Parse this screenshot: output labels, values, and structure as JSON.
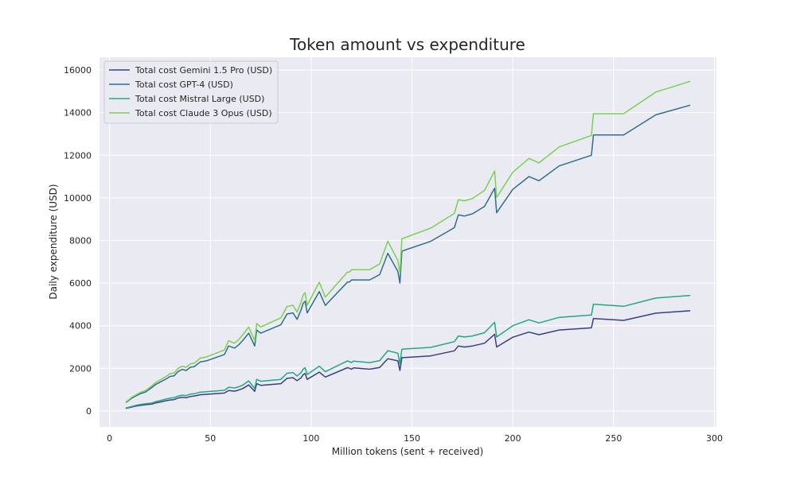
{
  "chart_data": {
    "type": "line",
    "title": "Token amount vs expenditure",
    "xlabel": "Million tokens (sent + received)",
    "ylabel": "Daily expenditure (USD)",
    "xlim": [
      -5,
      301
    ],
    "ylim": [
      -750,
      16600
    ],
    "xticks": [
      0,
      50,
      100,
      150,
      200,
      250,
      300
    ],
    "yticks": [
      0,
      2000,
      4000,
      6000,
      8000,
      10000,
      12000,
      14000,
      16000
    ],
    "grid": true,
    "legend_position": "top-left",
    "x": [
      8,
      9,
      11,
      13,
      15,
      18,
      21,
      23,
      25,
      28,
      30,
      32,
      34,
      36,
      38,
      40,
      42,
      45,
      48,
      57,
      59,
      62,
      64,
      66,
      69,
      72,
      73,
      75,
      85,
      88,
      91,
      93,
      95,
      96,
      97,
      98,
      104,
      107,
      118,
      119,
      120,
      121,
      129,
      134,
      138,
      143,
      144,
      145,
      159,
      160,
      171,
      173,
      176,
      180,
      186,
      191,
      192,
      200,
      208,
      213,
      223,
      239,
      240,
      255,
      271,
      288
    ],
    "series": [
      {
        "name": "Total cost Gemini 1.5 Pro (USD)",
        "color": "#3b3f84",
        "values": [
          124,
          140,
          182,
          226,
          258,
          295,
          320,
          380,
          413,
          480,
          515,
          530,
          610,
          640,
          620,
          680,
          700,
          760,
          780,
          840,
          960,
          930,
          980,
          1050,
          1220,
          920,
          1280,
          1200,
          1280,
          1530,
          1560,
          1420,
          1560,
          1700,
          1760,
          1480,
          1820,
          1590,
          2030,
          2000,
          1960,
          2020,
          1960,
          2040,
          2450,
          2350,
          1900,
          2500,
          2580,
          2600,
          2820,
          3050,
          3000,
          3050,
          3180,
          3600,
          3000,
          3460,
          3700,
          3580,
          3800,
          3900,
          4340,
          4250,
          4590,
          4700
        ]
      },
      {
        "name": "Total cost GPT-4 (USD)",
        "color": "#2e6f8e",
        "values": [
          400,
          450,
          600,
          700,
          800,
          900,
          1100,
          1250,
          1350,
          1500,
          1620,
          1650,
          1850,
          1950,
          1900,
          2050,
          2080,
          2300,
          2350,
          2650,
          3050,
          2950,
          3100,
          3300,
          3650,
          3050,
          3800,
          3650,
          4050,
          4550,
          4600,
          4300,
          4750,
          5050,
          5150,
          4600,
          5600,
          4950,
          6050,
          6050,
          6150,
          6150,
          6150,
          6400,
          7400,
          6550,
          6000,
          7500,
          7950,
          8000,
          8600,
          9200,
          9150,
          9250,
          9600,
          10450,
          9300,
          10400,
          11000,
          10800,
          11500,
          12000,
          12950,
          12950,
          13900,
          14350
        ]
      },
      {
        "name": "Total cost Mistral Large (USD)",
        "color": "#22a884",
        "values": [
          142,
          160,
          210,
          260,
          300,
          340,
          370,
          440,
          480,
          560,
          600,
          620,
          700,
          740,
          720,
          790,
          810,
          880,
          900,
          970,
          1110,
          1080,
          1130,
          1210,
          1410,
          1060,
          1480,
          1390,
          1480,
          1770,
          1800,
          1640,
          1800,
          1960,
          2030,
          1710,
          2100,
          1840,
          2350,
          2310,
          2270,
          2340,
          2270,
          2360,
          2830,
          2710,
          2200,
          2900,
          2980,
          3000,
          3250,
          3520,
          3470,
          3520,
          3670,
          4160,
          3470,
          4000,
          4280,
          4130,
          4390,
          4500,
          5010,
          4910,
          5300,
          5420
        ]
      },
      {
        "name": "Total cost Claude 3 Opus (USD)",
        "color": "#7ad151",
        "values": [
          420,
          480,
          640,
          750,
          860,
          970,
          1180,
          1340,
          1450,
          1620,
          1750,
          1780,
          2000,
          2100,
          2050,
          2210,
          2240,
          2480,
          2530,
          2860,
          3290,
          3180,
          3340,
          3560,
          3940,
          3290,
          4100,
          3940,
          4370,
          4900,
          4960,
          4640,
          5120,
          5440,
          5550,
          4960,
          6040,
          5340,
          6520,
          6520,
          6630,
          6630,
          6630,
          6900,
          7970,
          7060,
          6470,
          8080,
          8570,
          8620,
          9270,
          9910,
          9860,
          9970,
          10350,
          11260,
          10020,
          11200,
          11850,
          11640,
          12390,
          12930,
          13950,
          13950,
          14970,
          15470
        ]
      }
    ]
  }
}
